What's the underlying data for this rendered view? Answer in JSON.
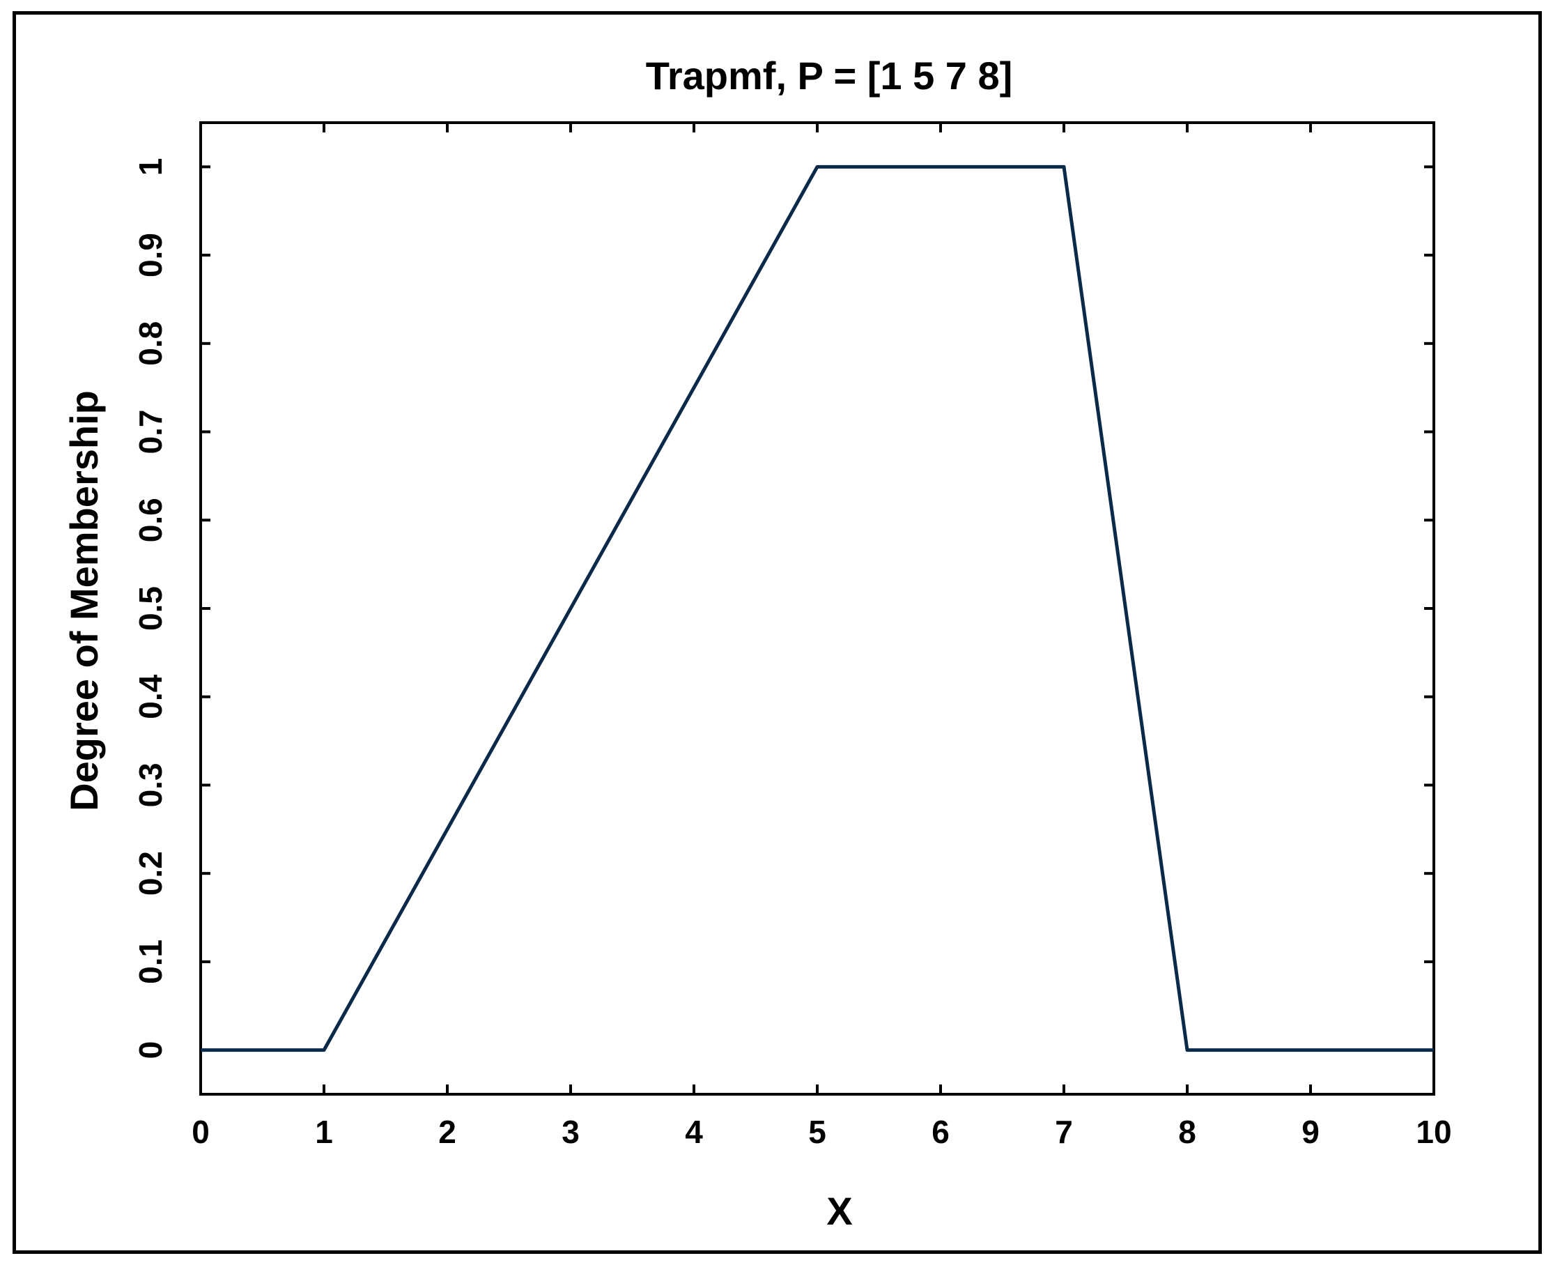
{
  "chart_data": {
    "type": "line",
    "title": "Trapmf, P = [1 5 7 8]",
    "xlabel": "X",
    "ylabel": "Degree of Membership",
    "xlim": [
      0,
      10
    ],
    "ylim": [
      -0.05,
      1.05
    ],
    "grid": false,
    "x_ticks": [
      "0",
      "1",
      "2",
      "3",
      "4",
      "5",
      "6",
      "7",
      "8",
      "9",
      "10"
    ],
    "y_ticks": [
      "0",
      "0.1",
      "0.2",
      "0.3",
      "0.4",
      "0.5",
      "0.6",
      "0.7",
      "0.8",
      "0.9",
      "1"
    ],
    "series": [
      {
        "x": [
          0,
          1,
          5,
          7,
          8,
          10
        ],
        "y": [
          0,
          0,
          1,
          1,
          0,
          0
        ],
        "color": "#0b2a4a"
      }
    ]
  }
}
